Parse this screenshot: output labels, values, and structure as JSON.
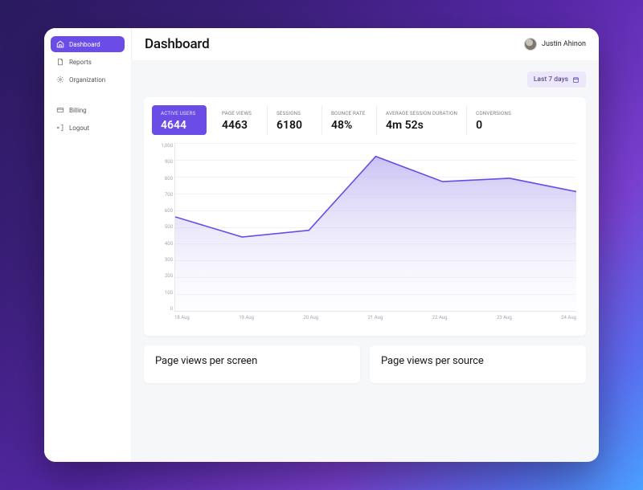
{
  "colors": {
    "accent": "#6b4ce6",
    "accent_light": "#ece7fb",
    "sidebar_bg": "#ffffff",
    "main_bg": "#f6f7f9",
    "card_bg": "#ffffff",
    "text_primary": "#111111",
    "text_muted": "#7a7a85",
    "grid": "#f0f0f5",
    "axis": "#e7e7ee",
    "chart_line": "#6b4ce6",
    "chart_fill_top": "#b9aef0",
    "chart_fill_bottom": "#f2effc"
  },
  "sidebar": {
    "items_primary": [
      {
        "label": "Dashboard",
        "icon": "home-icon",
        "active": true
      },
      {
        "label": "Reports",
        "icon": "document-icon",
        "active": false
      },
      {
        "label": "Organization",
        "icon": "gear-icon",
        "active": false
      }
    ],
    "items_secondary": [
      {
        "label": "Billing",
        "icon": "card-icon"
      },
      {
        "label": "Logout",
        "icon": "logout-icon"
      }
    ]
  },
  "header": {
    "title": "Dashboard",
    "user_name": "Justin Ahinon"
  },
  "date_range": {
    "label": "Last 7 days"
  },
  "metrics": [
    {
      "label": "ACTIVE USERS",
      "value": "4644",
      "active": true
    },
    {
      "label": "PAGE VIEWS",
      "value": "4463",
      "active": false
    },
    {
      "label": "SESSIONS",
      "value": "6180",
      "active": false
    },
    {
      "label": "BOUNCE RATE",
      "value": "48%",
      "active": false
    },
    {
      "label": "AVERAGE SESSION DURATION",
      "value": "4m 52s",
      "active": false
    },
    {
      "label": "CONVERSIONS",
      "value": "0",
      "active": false
    }
  ],
  "active_users_chart": {
    "type": "area",
    "y_min": 0,
    "y_max": 1000,
    "y_tick_step": 100,
    "y_ticks": [
      1000,
      900,
      800,
      700,
      600,
      500,
      400,
      300,
      200,
      100,
      0
    ],
    "x_labels": [
      "18 Aug",
      "19 Aug",
      "20 Aug",
      "21 Aug",
      "22 Aug",
      "23 Aug",
      "24 Aug"
    ],
    "points": [
      {
        "x": "18 Aug",
        "y": 560
      },
      {
        "x": "19 Aug",
        "y": 440
      },
      {
        "x": "20 Aug",
        "y": 480
      },
      {
        "x": "21 Aug",
        "y": 920
      },
      {
        "x": "22 Aug",
        "y": 770
      },
      {
        "x": "23 Aug",
        "y": 790
      },
      {
        "x": "24 Aug",
        "y": 710
      }
    ],
    "line_color": "#6b4ce6",
    "line_width": 1.6,
    "fill_top_color": "#b9aef0",
    "fill_bottom_color": "#f6f3fd",
    "grid_color": "#f0f0f5",
    "axis_color": "#e7e7ee",
    "label_color": "#a4a4ae",
    "label_fontsize": 6
  },
  "bottom_cards": [
    {
      "title": "Page views per screen"
    },
    {
      "title": "Page views per source"
    }
  ]
}
